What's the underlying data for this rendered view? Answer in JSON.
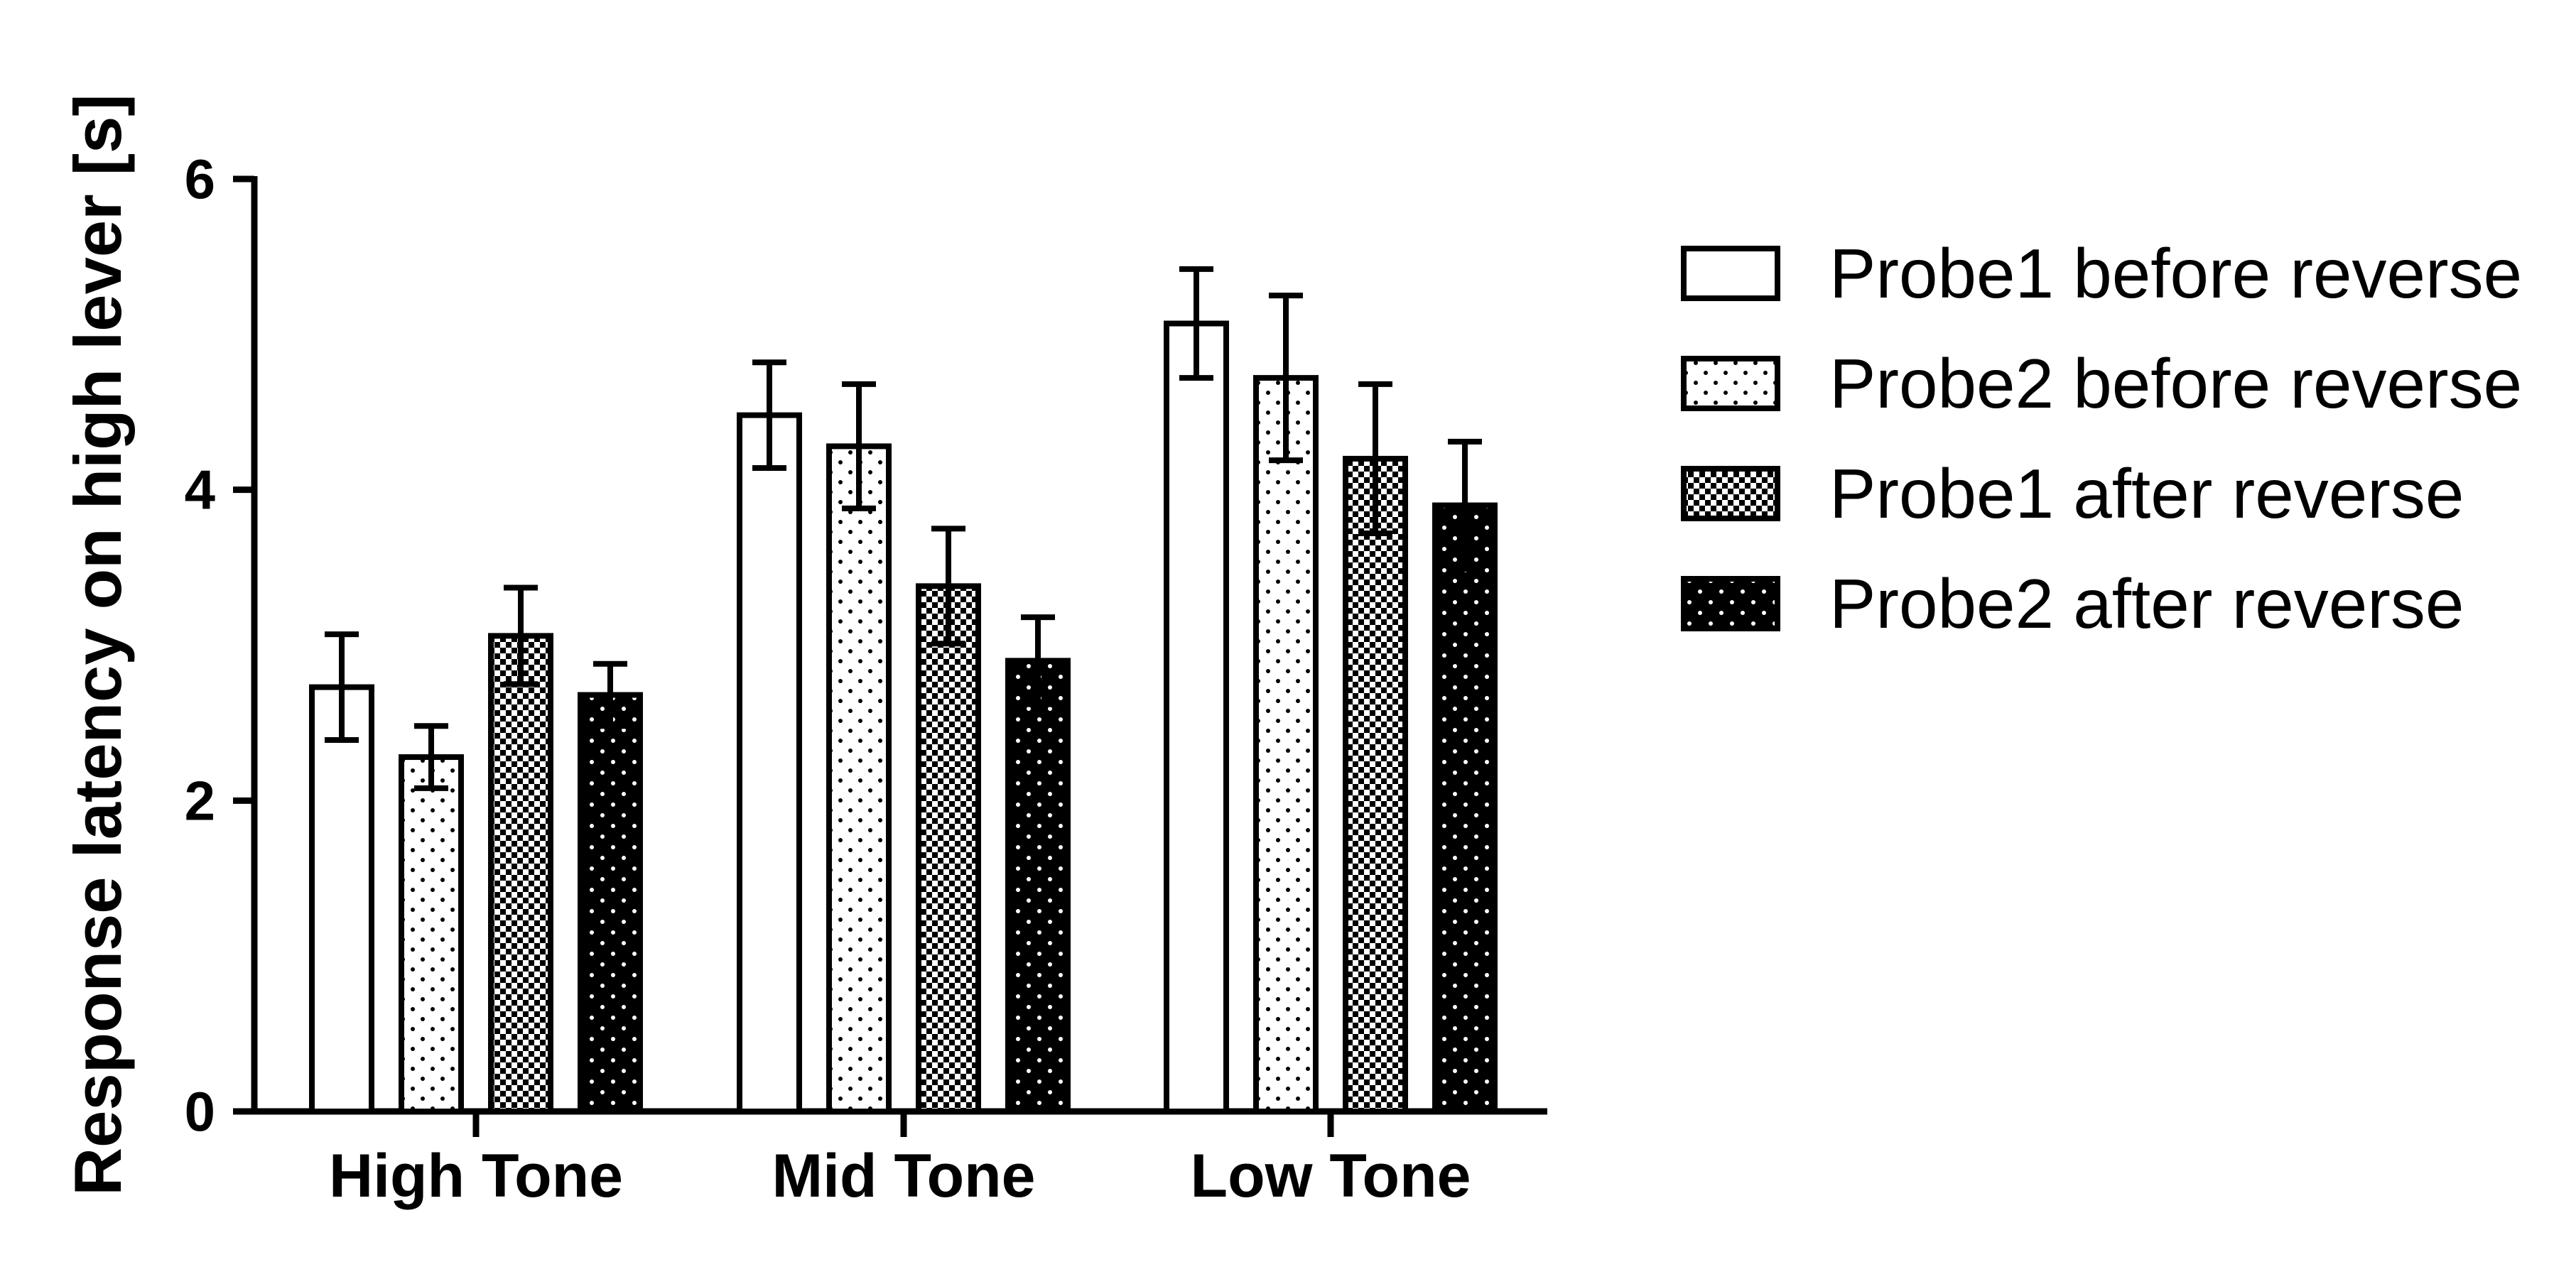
{
  "chart_data": {
    "type": "bar",
    "title": "",
    "xlabel": "",
    "ylabel": "Response latency on high lever [s]",
    "ylim": [
      0,
      6
    ],
    "yticks": [
      "0",
      "2",
      "4",
      "6"
    ],
    "categories": [
      "High Tone",
      "Mid Tone",
      "Low Tone"
    ],
    "series": [
      {
        "name": "Probe1 before reverse",
        "values": [
          2.73,
          4.48,
          5.07
        ],
        "errors": [
          0.34,
          0.34,
          0.35
        ],
        "pattern": "empty"
      },
      {
        "name": "Probe2 before reverse",
        "values": [
          2.28,
          4.28,
          4.72
        ],
        "errors": [
          0.2,
          0.4,
          0.53
        ],
        "pattern": "dots"
      },
      {
        "name": "Probe1 after reverse",
        "values": [
          3.06,
          3.38,
          4.2
        ],
        "errors": [
          0.31,
          0.37,
          0.48
        ],
        "pattern": "checker"
      },
      {
        "name": "Probe2 after reverse",
        "values": [
          2.68,
          2.9,
          3.9
        ],
        "errors": [
          0.2,
          0.28,
          0.41
        ],
        "pattern": "black-dots"
      }
    ],
    "legend_position": "right",
    "grid": false
  }
}
